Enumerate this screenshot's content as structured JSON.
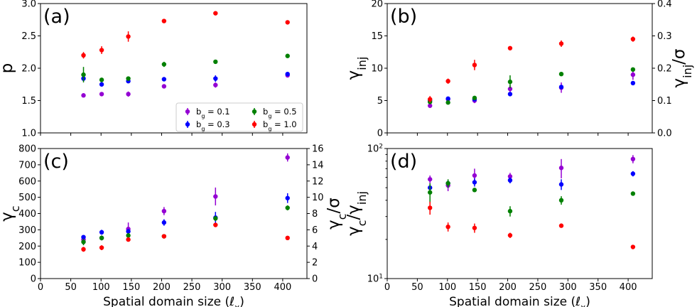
{
  "chart_data": [
    {
      "panel_label": "(a)",
      "type": "scatter",
      "ylabel": "p",
      "ylim": [
        1.0,
        3.0
      ],
      "yticks": [
        1.0,
        1.5,
        2.0,
        2.5,
        3.0
      ],
      "ytick_labels": [
        "1.0",
        "1.5",
        "2.0",
        "2.5",
        "3.0"
      ],
      "xlim": [
        0,
        440
      ],
      "show_xticklabels": false,
      "legend": {
        "placement": "lower-right",
        "entries": [
          {
            "series": "bg01",
            "label": "b_g = 0.1"
          },
          {
            "series": "bg05",
            "label": "b_g = 0.5"
          },
          {
            "series": "bg03",
            "label": "b_g = 0.3"
          },
          {
            "series": "bg10",
            "label": "b_g = 1.0"
          }
        ]
      },
      "series": [
        {
          "id": "bg01",
          "color": "#9400d3",
          "points": [
            {
              "x": 71,
              "y": 1.58,
              "err": 0.02
            },
            {
              "x": 101,
              "y": 1.6,
              "err": 0.02
            },
            {
              "x": 145,
              "y": 1.6,
              "err": 0.04
            },
            {
              "x": 204,
              "y": 1.72,
              "err": 0.02
            },
            {
              "x": 289,
              "y": 1.74,
              "err": 0.04
            },
            {
              "x": 408,
              "y": 1.89,
              "err": 0.02
            }
          ]
        },
        {
          "id": "bg03",
          "color": "#0000ff",
          "points": [
            {
              "x": 71,
              "y": 1.84,
              "err": 0.04
            },
            {
              "x": 101,
              "y": 1.75,
              "err": 0.02
            },
            {
              "x": 145,
              "y": 1.8,
              "err": 0.02
            },
            {
              "x": 204,
              "y": 1.83,
              "err": 0.02
            },
            {
              "x": 289,
              "y": 1.84,
              "err": 0.05
            },
            {
              "x": 408,
              "y": 1.91,
              "err": 0.02
            }
          ]
        },
        {
          "id": "bg05",
          "color": "#008000",
          "points": [
            {
              "x": 71,
              "y": 1.9,
              "err": 0.12
            },
            {
              "x": 101,
              "y": 1.82,
              "err": 0.02
            },
            {
              "x": 145,
              "y": 1.84,
              "err": 0.02
            },
            {
              "x": 204,
              "y": 2.06,
              "err": 0.04
            },
            {
              "x": 289,
              "y": 2.1,
              "err": 0.03
            },
            {
              "x": 408,
              "y": 2.19,
              "err": 0.02
            }
          ]
        },
        {
          "id": "bg10",
          "color": "#ff0000",
          "points": [
            {
              "x": 71,
              "y": 2.2,
              "err": 0.05
            },
            {
              "x": 101,
              "y": 2.28,
              "err": 0.06
            },
            {
              "x": 145,
              "y": 2.49,
              "err": 0.08
            },
            {
              "x": 204,
              "y": 2.73,
              "err": 0.02
            },
            {
              "x": 289,
              "y": 2.85,
              "err": 0.02
            },
            {
              "x": 408,
              "y": 2.71,
              "err": 0.02
            }
          ]
        }
      ]
    },
    {
      "panel_label": "(b)",
      "type": "scatter",
      "ylabel": "γ_inj",
      "ylabel_right": "γ_inj/σ",
      "ylim": [
        0,
        20
      ],
      "yticks": [
        0,
        5,
        10,
        15,
        20
      ],
      "ytick_labels": [
        "0",
        "5",
        "10",
        "15",
        "20"
      ],
      "ylim_right": [
        0.0,
        0.4
      ],
      "yticks_right": [
        0.0,
        0.1,
        0.2,
        0.3,
        0.4
      ],
      "ytick_labels_right": [
        "0.0",
        "0.1",
        "0.2",
        "0.3",
        "0.4"
      ],
      "xlim": [
        0,
        440
      ],
      "show_xticklabels": false,
      "series": [
        {
          "id": "bg01",
          "color": "#9400d3",
          "points": [
            {
              "x": 71,
              "y": 4.2,
              "err": 0.3
            },
            {
              "x": 101,
              "y": 5.2,
              "err": 0.2
            },
            {
              "x": 145,
              "y": 5.0,
              "err": 0.4
            },
            {
              "x": 204,
              "y": 6.8,
              "err": 0.6
            },
            {
              "x": 289,
              "y": 7.0,
              "err": 0.8
            },
            {
              "x": 408,
              "y": 9.0,
              "err": 0.8
            }
          ]
        },
        {
          "id": "bg03",
          "color": "#0000ff",
          "points": [
            {
              "x": 71,
              "y": 5.0,
              "err": 0.3
            },
            {
              "x": 101,
              "y": 5.3,
              "err": 0.2
            },
            {
              "x": 145,
              "y": 5.2,
              "err": 0.3
            },
            {
              "x": 204,
              "y": 6.0,
              "err": 0.3
            },
            {
              "x": 289,
              "y": 7.1,
              "err": 0.3
            },
            {
              "x": 408,
              "y": 7.7,
              "err": 0.2
            }
          ]
        },
        {
          "id": "bg05",
          "color": "#008000",
          "points": [
            {
              "x": 71,
              "y": 4.8,
              "err": 0.3
            },
            {
              "x": 101,
              "y": 4.7,
              "err": 0.2
            },
            {
              "x": 145,
              "y": 5.4,
              "err": 0.2
            },
            {
              "x": 204,
              "y": 7.9,
              "err": 1.0
            },
            {
              "x": 289,
              "y": 9.1,
              "err": 0.3
            },
            {
              "x": 408,
              "y": 9.8,
              "err": 0.2
            }
          ]
        },
        {
          "id": "bg10",
          "color": "#ff0000",
          "points": [
            {
              "x": 71,
              "y": 5.2,
              "err": 0.5
            },
            {
              "x": 101,
              "y": 8.0,
              "err": 0.4
            },
            {
              "x": 145,
              "y": 10.5,
              "err": 0.8
            },
            {
              "x": 204,
              "y": 13.1,
              "err": 0.3
            },
            {
              "x": 289,
              "y": 13.8,
              "err": 0.5
            },
            {
              "x": 408,
              "y": 14.5,
              "err": 0.4
            }
          ]
        }
      ]
    },
    {
      "panel_label": "(c)",
      "type": "scatter",
      "ylabel": "γ_c",
      "ylabel_right": "γ_c/σ",
      "xlabel": "Spatial domain size (ℓ_x)",
      "ylim": [
        0,
        800
      ],
      "yticks": [
        0,
        100,
        200,
        300,
        400,
        500,
        600,
        700,
        800
      ],
      "ytick_labels": [
        "0",
        "100",
        "200",
        "300",
        "400",
        "500",
        "600",
        "700",
        "800"
      ],
      "ylim_right": [
        0,
        16
      ],
      "yticks_right": [
        0,
        2,
        4,
        6,
        8,
        10,
        12,
        14,
        16
      ],
      "ytick_labels_right": [
        "0",
        "2",
        "4",
        "6",
        "8",
        "10",
        "12",
        "14",
        "16"
      ],
      "xlim": [
        0,
        440
      ],
      "xticks": [
        0,
        50,
        100,
        150,
        200,
        250,
        300,
        350,
        400
      ],
      "xtick_labels": [
        "0",
        "50",
        "100",
        "150",
        "200",
        "250",
        "300",
        "350",
        "400"
      ],
      "series": [
        {
          "id": "bg01",
          "color": "#9400d3",
          "points": [
            {
              "x": 71,
              "y": 240,
              "err": 15
            },
            {
              "x": 101,
              "y": 250,
              "err": 15
            },
            {
              "x": 145,
              "y": 305,
              "err": 40
            },
            {
              "x": 204,
              "y": 415,
              "err": 25
            },
            {
              "x": 289,
              "y": 505,
              "err": 55
            },
            {
              "x": 408,
              "y": 745,
              "err": 25
            }
          ]
        },
        {
          "id": "bg03",
          "color": "#0000ff",
          "points": [
            {
              "x": 71,
              "y": 255,
              "err": 10
            },
            {
              "x": 101,
              "y": 285,
              "err": 15
            },
            {
              "x": 145,
              "y": 290,
              "err": 15
            },
            {
              "x": 204,
              "y": 345,
              "err": 20
            },
            {
              "x": 289,
              "y": 375,
              "err": 35
            },
            {
              "x": 408,
              "y": 495,
              "err": 30
            }
          ]
        },
        {
          "id": "bg05",
          "color": "#008000",
          "points": [
            {
              "x": 71,
              "y": 225,
              "err": 20
            },
            {
              "x": 101,
              "y": 250,
              "err": 15
            },
            {
              "x": 145,
              "y": 265,
              "err": 15
            },
            {
              "x": 204,
              "y": 260,
              "err": 10
            },
            {
              "x": 289,
              "y": 370,
              "err": 15
            },
            {
              "x": 408,
              "y": 435,
              "err": 15
            }
          ]
        },
        {
          "id": "bg10",
          "color": "#ff0000",
          "points": [
            {
              "x": 71,
              "y": 180,
              "err": 15
            },
            {
              "x": 101,
              "y": 190,
              "err": 15
            },
            {
              "x": 145,
              "y": 240,
              "err": 10
            },
            {
              "x": 204,
              "y": 260,
              "err": 8
            },
            {
              "x": 289,
              "y": 330,
              "err": 8
            },
            {
              "x": 408,
              "y": 250,
              "err": 6
            }
          ]
        }
      ]
    },
    {
      "panel_label": "(d)",
      "type": "scatter",
      "ylabel": "γ_c/γ_inj",
      "xlabel": "Spatial domain size (ℓ_x)",
      "yscale": "log",
      "ylim": [
        10,
        100
      ],
      "yticks": [
        10,
        100
      ],
      "ytick_labels": [
        "10^1",
        "10^2"
      ],
      "xlim": [
        0,
        440
      ],
      "xticks": [
        0,
        50,
        100,
        150,
        200,
        250,
        300,
        350,
        400
      ],
      "xtick_labels": [
        "0",
        "50",
        "100",
        "150",
        "200",
        "250",
        "300",
        "350",
        "400"
      ],
      "series": [
        {
          "id": "bg01",
          "color": "#9400d3",
          "points": [
            {
              "x": 71,
              "y": 58,
              "err": 4
            },
            {
              "x": 101,
              "y": 52,
              "err": 5
            },
            {
              "x": 145,
              "y": 62,
              "err": 8
            },
            {
              "x": 204,
              "y": 61,
              "err": 4
            },
            {
              "x": 289,
              "y": 71,
              "err": 12
            },
            {
              "x": 408,
              "y": 83,
              "err": 6
            }
          ]
        },
        {
          "id": "bg03",
          "color": "#0000ff",
          "points": [
            {
              "x": 71,
              "y": 50,
              "err": 3
            },
            {
              "x": 101,
              "y": 54,
              "err": 3
            },
            {
              "x": 145,
              "y": 55,
              "err": 4
            },
            {
              "x": 204,
              "y": 57,
              "err": 3
            },
            {
              "x": 289,
              "y": 53,
              "err": 5
            },
            {
              "x": 408,
              "y": 64,
              "err": 3
            }
          ]
        },
        {
          "id": "bg05",
          "color": "#008000",
          "points": [
            {
              "x": 71,
              "y": 46,
              "err": 8
            },
            {
              "x": 101,
              "y": 54,
              "err": 4
            },
            {
              "x": 145,
              "y": 48,
              "err": 1.5
            },
            {
              "x": 204,
              "y": 33,
              "err": 3
            },
            {
              "x": 289,
              "y": 40,
              "err": 3
            },
            {
              "x": 408,
              "y": 45,
              "err": 1.5
            }
          ]
        },
        {
          "id": "bg10",
          "color": "#ff0000",
          "points": [
            {
              "x": 71,
              "y": 35,
              "err": 4
            },
            {
              "x": 101,
              "y": 25,
              "err": 2
            },
            {
              "x": 145,
              "y": 24.5,
              "err": 2
            },
            {
              "x": 204,
              "y": 21.5,
              "err": 1
            },
            {
              "x": 289,
              "y": 25.5,
              "err": 0.8
            },
            {
              "x": 408,
              "y": 17.5,
              "err": 0.5
            }
          ]
        }
      ]
    }
  ]
}
